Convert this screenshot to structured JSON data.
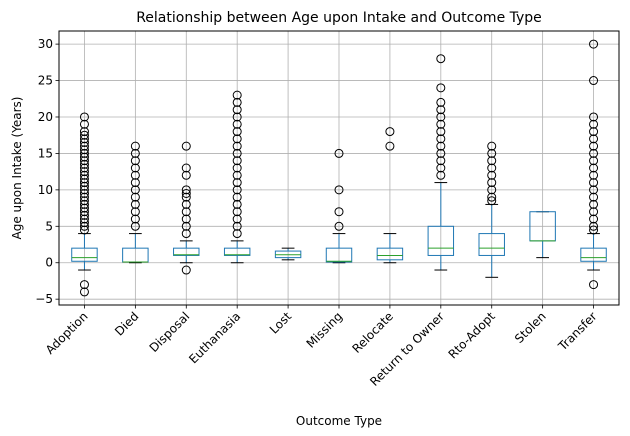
{
  "chart_data": {
    "type": "box",
    "title": "Relationship between Age upon Intake and Outcome Type",
    "xlabel": "Outcome Type",
    "ylabel": "Age upon Intake (Years)",
    "ylim": [
      -5.8,
      31.8
    ],
    "yticks": [
      -5,
      0,
      5,
      10,
      15,
      20,
      25,
      30
    ],
    "grid": true,
    "colors": {
      "box": "#1f77b4",
      "median": "#2ca02c",
      "whisker": "#000000",
      "grid": "#b0b0b0"
    },
    "categories": [
      "Adoption",
      "Died",
      "Disposal",
      "Euthanasia",
      "Lost",
      "Missing",
      "Relocate",
      "Return to Owner",
      "Rto-Adopt",
      "Stolen",
      "Transfer"
    ],
    "boxes": [
      {
        "q1": 0.2,
        "median": 0.7,
        "q3": 2,
        "whislo": -1,
        "whishi": 4,
        "fliers": [
          20,
          19,
          18,
          17.5,
          17,
          16.5,
          16,
          15.5,
          15,
          14.5,
          14,
          13.5,
          13,
          12.5,
          12,
          11.5,
          11,
          10.5,
          10,
          9.5,
          9,
          8.5,
          8,
          7.5,
          7,
          6.5,
          6,
          5.5,
          5,
          4.5,
          -3,
          -4
        ]
      },
      {
        "q1": 0.1,
        "median": 0.1,
        "q3": 2,
        "whislo": 0,
        "whishi": 4,
        "fliers": [
          16,
          15,
          14,
          13,
          12,
          11,
          10,
          9,
          8,
          7,
          6,
          5
        ]
      },
      {
        "q1": 1,
        "median": 1.1,
        "q3": 2,
        "whislo": 0,
        "whishi": 3,
        "fliers": [
          16,
          13,
          12,
          10,
          9.5,
          9,
          8,
          7,
          6,
          5,
          4,
          -1
        ]
      },
      {
        "q1": 1,
        "median": 1.1,
        "q3": 2,
        "whislo": 0,
        "whishi": 3,
        "fliers": [
          23,
          22,
          21,
          20,
          19,
          18,
          17,
          16,
          15,
          14,
          13,
          12,
          11,
          10,
          9,
          8,
          7,
          6,
          5,
          4
        ]
      },
      {
        "q1": 0.7,
        "median": 1.1,
        "q3": 1.6,
        "whislo": 0.4,
        "whishi": 2,
        "fliers": []
      },
      {
        "q1": 0.1,
        "median": 0.2,
        "q3": 2,
        "whislo": 0,
        "whishi": 4,
        "fliers": [
          15,
          10,
          7,
          5
        ]
      },
      {
        "q1": 0.4,
        "median": 1,
        "q3": 2,
        "whislo": 0,
        "whishi": 4,
        "fliers": [
          18,
          16
        ]
      },
      {
        "q1": 1,
        "median": 2,
        "q3": 5,
        "whislo": -1,
        "whishi": 11,
        "fliers": [
          28,
          24,
          22,
          21,
          20,
          19,
          18,
          17,
          16,
          15,
          14,
          13,
          12
        ]
      },
      {
        "q1": 1,
        "median": 2,
        "q3": 4,
        "whislo": -2,
        "whishi": 8,
        "fliers": [
          16,
          15,
          14,
          13,
          12,
          11,
          10,
          9,
          8.5
        ]
      },
      {
        "q1": 3,
        "median": 3,
        "q3": 7,
        "whislo": 0.7,
        "whishi": 7,
        "fliers": []
      },
      {
        "q1": 0.2,
        "median": 0.7,
        "q3": 2,
        "whislo": -1,
        "whishi": 4,
        "fliers": [
          30,
          25,
          20,
          19,
          18,
          17,
          16,
          15,
          14,
          13,
          12,
          11,
          10,
          9,
          8,
          7,
          6,
          5,
          4.5,
          -3
        ]
      }
    ]
  }
}
